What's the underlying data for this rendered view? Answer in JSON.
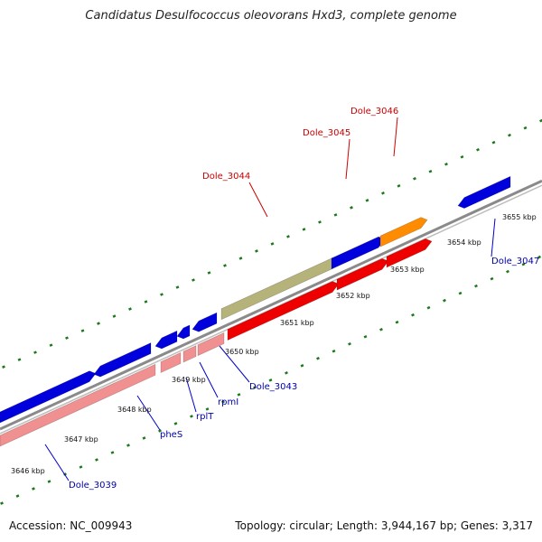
{
  "title": "Candidatus Desulfococcus oleovorans Hxd3, complete genome",
  "footer": {
    "accession": "Accession: NC_009943",
    "summary": "Topology: circular; Length: 3,944,167 bp; Genes: 3,317"
  },
  "colors": {
    "backbone": "#8a8a8a",
    "tick": "#1a7a1a",
    "label_top": "#cc0000",
    "label_bottom": "#0000aa",
    "leader_top": "#cc0000",
    "leader_bottom": "#0000cc"
  },
  "kbp_ticks": [
    "3646 kbp",
    "3647 kbp",
    "3648 kbp",
    "3649 kbp",
    "3650 kbp",
    "3651 kbp",
    "3652 kbp",
    "3653 kbp",
    "3654 kbp",
    "3655 kbp"
  ],
  "labels_top": [
    "Dole_3044",
    "Dole_3045",
    "Dole_3046"
  ],
  "labels_bottom": [
    "Dole_3039",
    "pheS",
    "rplT",
    "rpmI",
    "Dole_3043",
    "Dole_3047"
  ]
}
